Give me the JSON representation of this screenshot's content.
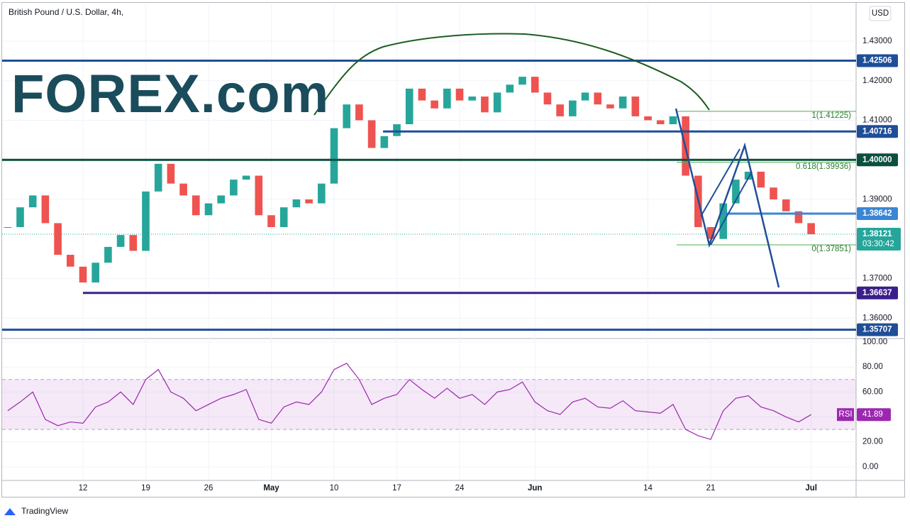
{
  "chart_data": [
    {
      "type": "candlestick",
      "title": "British Pound / U.S. Dollar, 4h,",
      "currency": "USD",
      "countdown": "03:30:42",
      "up_color": "#26a69a",
      "down_color": "#ef5350",
      "x": [
        -6,
        -5,
        -4,
        -3,
        -2,
        -1,
        0,
        1,
        2,
        3,
        4,
        5,
        6,
        7,
        8,
        9,
        10,
        11,
        12,
        13,
        14,
        15,
        16,
        17,
        18,
        19,
        20,
        21,
        22,
        23,
        24,
        25,
        26,
        27,
        28,
        29,
        30,
        31,
        32,
        33,
        34,
        35,
        36,
        37,
        38,
        39,
        40,
        41,
        42,
        43,
        44,
        45,
        46,
        47,
        48,
        49,
        50,
        51,
        52,
        53,
        54,
        55,
        56,
        57,
        58
      ],
      "values": [
        1.383,
        1.388,
        1.391,
        1.384,
        1.376,
        1.373,
        1.369,
        1.374,
        1.378,
        1.381,
        1.377,
        1.392,
        1.399,
        1.394,
        1.391,
        1.386,
        1.389,
        1.391,
        1.395,
        1.396,
        1.386,
        1.383,
        1.388,
        1.39,
        1.389,
        1.394,
        1.408,
        1.414,
        1.41,
        1.403,
        1.406,
        1.409,
        1.418,
        1.415,
        1.413,
        1.418,
        1.415,
        1.416,
        1.412,
        1.417,
        1.419,
        1.421,
        1.417,
        1.414,
        1.411,
        1.415,
        1.417,
        1.414,
        1.413,
        1.416,
        1.411,
        1.41,
        1.409,
        1.411,
        1.396,
        1.383,
        1.38,
        1.389,
        1.395,
        1.397,
        1.393,
        1.39,
        1.387,
        1.384,
        1.38121
      ],
      "xlim": [
        -6.44,
        61.58
      ],
      "ylim": [
        1.3552,
        1.4395
      ],
      "yticks": [
        {
          "value": 1.43,
          "label": "1.43000"
        },
        {
          "value": 1.42,
          "label": "1.42000"
        },
        {
          "value": 1.41,
          "label": "1.41000"
        },
        {
          "value": 1.39,
          "label": "1.39000"
        },
        {
          "value": 1.37,
          "label": "1.37000"
        },
        {
          "value": 1.36,
          "label": "1.36000"
        }
      ],
      "levels": [
        {
          "value": 1.42506,
          "color": "#1f4e99",
          "from": -6.44
        },
        {
          "value": 1.40716,
          "color": "#1f4e99",
          "from": 23.9
        },
        {
          "value": 1.4,
          "label": "1.40000",
          "color": "#0b4f3f",
          "from": -6.44
        },
        {
          "value": 1.38642,
          "color": "#3a86d4",
          "from": 51
        },
        {
          "value": 1.36637,
          "color": "#3a1f8c",
          "from": 0
        },
        {
          "value": 1.35707,
          "color": "#1f4e99",
          "from": -6.44
        }
      ],
      "fib": [
        {
          "label": "1(1.41225)",
          "value": 1.41225,
          "from": 47.3
        },
        {
          "label": "0.618(1.39936)",
          "value": 1.39936,
          "from": 47.3
        },
        {
          "label": "0(1.37851)",
          "value": 1.37851,
          "from": 47.3
        }
      ]
    },
    {
      "type": "line",
      "x": [
        -6,
        -5,
        -4,
        -3,
        -2,
        -1,
        0,
        1,
        2,
        3,
        4,
        5,
        6,
        7,
        8,
        9,
        10,
        11,
        12,
        13,
        14,
        15,
        16,
        17,
        18,
        19,
        20,
        21,
        22,
        23,
        24,
        25,
        26,
        27,
        28,
        29,
        30,
        31,
        32,
        33,
        34,
        35,
        36,
        37,
        38,
        39,
        40,
        41,
        42,
        43,
        44,
        45,
        46,
        47,
        48,
        49,
        50,
        51,
        52,
        53,
        54,
        55,
        56,
        57,
        58
      ],
      "series": [
        {
          "name": "RSI",
          "color": "#9c27b0",
          "values": [
            45,
            52,
            60,
            38,
            33,
            36,
            35,
            48,
            52,
            60,
            50,
            70,
            78,
            60,
            55,
            45,
            50,
            55,
            58,
            62,
            38,
            35,
            48,
            52,
            50,
            60,
            78,
            83,
            70,
            50,
            55,
            58,
            70,
            62,
            55,
            63,
            55,
            58,
            50,
            60,
            62,
            68,
            52,
            45,
            42,
            52,
            55,
            48,
            47,
            53,
            45,
            44,
            43,
            50,
            30,
            25,
            22,
            45,
            55,
            57,
            48,
            45,
            40,
            36,
            41.89
          ]
        }
      ],
      "band": [
        30,
        70
      ],
      "xlim": [
        -6.44,
        61.58
      ],
      "ylim": [
        -10.9,
        102.3
      ],
      "yticks": [
        {
          "value": 100,
          "label": "100.00"
        },
        {
          "value": 80,
          "label": "80.00"
        },
        {
          "value": 60,
          "label": "60.00"
        },
        {
          "value": 40,
          "label": "40.00"
        },
        {
          "value": 20,
          "label": "20.00"
        },
        {
          "value": 0,
          "label": "0.00"
        }
      ],
      "xticks": [
        {
          "value": 0,
          "label": "12"
        },
        {
          "value": 5,
          "label": "19"
        },
        {
          "value": 10,
          "label": "26"
        },
        {
          "value": 15,
          "label": "May"
        },
        {
          "value": 20,
          "label": "10"
        },
        {
          "value": 25,
          "label": "17"
        },
        {
          "value": 30,
          "label": "24"
        },
        {
          "value": 36,
          "label": "Jun"
        },
        {
          "value": 45,
          "label": "14"
        },
        {
          "value": 50,
          "label": "21"
        },
        {
          "value": 58,
          "label": "Jul"
        }
      ]
    }
  ],
  "logo": "FOREX.com",
  "footer": "TradingView"
}
